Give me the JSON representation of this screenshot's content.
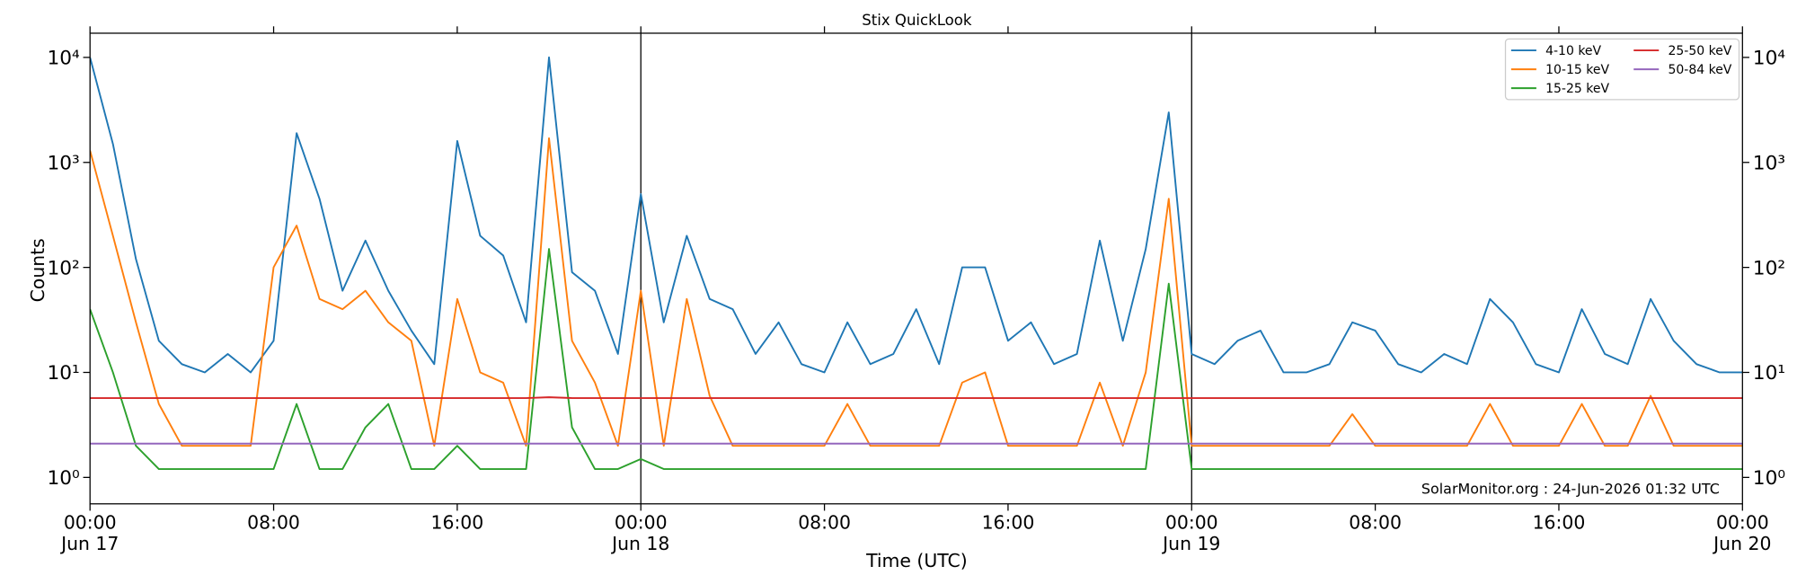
{
  "chart_data": {
    "type": "line",
    "title": "Stix QuickLook",
    "xlabel": "Time (UTC)",
    "ylabel": "Counts",
    "annotation": "SolarMonitor.org : 24-Jun-2026 01:32 UTC",
    "yscale": "log",
    "legend": "upper right",
    "x": [
      "Jun 17 00:00",
      "Jun 17 01:00",
      "Jun 17 02:00",
      "Jun 17 03:00",
      "Jun 17 04:00",
      "Jun 17 05:00",
      "Jun 17 06:00",
      "Jun 17 07:00",
      "Jun 17 08:00",
      "Jun 17 09:00",
      "Jun 17 10:00",
      "Jun 17 11:00",
      "Jun 17 12:00",
      "Jun 17 13:00",
      "Jun 17 14:00",
      "Jun 17 15:00",
      "Jun 17 16:00",
      "Jun 17 17:00",
      "Jun 17 18:00",
      "Jun 17 19:00",
      "Jun 17 20:00",
      "Jun 17 21:00",
      "Jun 17 22:00",
      "Jun 17 23:00",
      "Jun 18 00:00",
      "Jun 18 01:00",
      "Jun 18 02:00",
      "Jun 18 03:00",
      "Jun 18 04:00",
      "Jun 18 05:00",
      "Jun 18 06:00",
      "Jun 18 07:00",
      "Jun 18 08:00",
      "Jun 18 09:00",
      "Jun 18 10:00",
      "Jun 18 11:00",
      "Jun 18 12:00",
      "Jun 18 13:00",
      "Jun 18 14:00",
      "Jun 18 15:00",
      "Jun 18 16:00",
      "Jun 18 17:00",
      "Jun 18 18:00",
      "Jun 18 19:00",
      "Jun 18 20:00",
      "Jun 18 21:00",
      "Jun 18 22:00",
      "Jun 18 23:00",
      "Jun 19 00:00",
      "Jun 19 01:00",
      "Jun 19 02:00",
      "Jun 19 03:00",
      "Jun 19 04:00",
      "Jun 19 05:00",
      "Jun 19 06:00",
      "Jun 19 07:00",
      "Jun 19 08:00",
      "Jun 19 09:00",
      "Jun 19 10:00",
      "Jun 19 11:00",
      "Jun 19 12:00",
      "Jun 19 13:00",
      "Jun 19 14:00",
      "Jun 19 15:00",
      "Jun 19 16:00",
      "Jun 19 17:00",
      "Jun 19 18:00",
      "Jun 19 19:00",
      "Jun 19 20:00",
      "Jun 19 21:00",
      "Jun 19 22:00",
      "Jun 19 23:00",
      "Jun 20 00:00"
    ],
    "series": [
      {
        "name": "4-10 keV",
        "color": "#1f77b4",
        "values": [
          10000,
          1500,
          120,
          20,
          12,
          10,
          15,
          10,
          20,
          1900,
          450,
          60,
          180,
          60,
          25,
          12,
          1600,
          200,
          130,
          30,
          10000,
          90,
          60,
          15,
          500,
          30,
          200,
          50,
          40,
          15,
          30,
          12,
          10,
          30,
          12,
          15,
          40,
          12,
          100,
          100,
          20,
          30,
          12,
          15,
          180,
          20,
          150,
          3000,
          15,
          12,
          20,
          25,
          10,
          10,
          12,
          30,
          25,
          12,
          10,
          15,
          12,
          50,
          30,
          12,
          10,
          40,
          15,
          12,
          50,
          20,
          12,
          10,
          10
        ]
      },
      {
        "name": "10-15 keV",
        "color": "#ff7f0e",
        "values": [
          1300,
          200,
          30,
          5,
          2,
          2,
          2,
          2,
          100,
          250,
          50,
          40,
          60,
          30,
          20,
          2,
          50,
          10,
          8,
          2,
          1700,
          20,
          8,
          2,
          60,
          2,
          50,
          6,
          2,
          2,
          2,
          2,
          2,
          5,
          2,
          2,
          2,
          2,
          8,
          10,
          2,
          2,
          2,
          2,
          8,
          2,
          10,
          450,
          2,
          2,
          2,
          2,
          2,
          2,
          2,
          4,
          2,
          2,
          2,
          2,
          2,
          5,
          2,
          2,
          2,
          5,
          2,
          2,
          6,
          2,
          2,
          2,
          2
        ]
      },
      {
        "name": "15-25 keV",
        "color": "#2ca02c",
        "values": [
          40,
          10,
          2,
          1.2,
          1.2,
          1.2,
          1.2,
          1.2,
          1.2,
          5,
          1.2,
          1.2,
          3,
          5,
          1.2,
          1.2,
          2,
          1.2,
          1.2,
          1.2,
          150,
          3,
          1.2,
          1.2,
          1.5,
          1.2,
          1.2,
          1.2,
          1.2,
          1.2,
          1.2,
          1.2,
          1.2,
          1.2,
          1.2,
          1.2,
          1.2,
          1.2,
          1.2,
          1.2,
          1.2,
          1.2,
          1.2,
          1.2,
          1.2,
          1.2,
          1.2,
          70,
          1.2,
          1.2,
          1.2,
          1.2,
          1.2,
          1.2,
          1.2,
          1.2,
          1.2,
          1.2,
          1.2,
          1.2,
          1.2,
          1.2,
          1.2,
          1.2,
          1.2,
          1.2,
          1.2,
          1.2,
          1.2,
          1.2,
          1.2,
          1.2,
          1.2
        ]
      },
      {
        "name": "25-50 keV",
        "color": "#d62728",
        "values": [
          5.7,
          5.7,
          5.7,
          5.7,
          5.7,
          5.7,
          5.7,
          5.7,
          5.7,
          5.7,
          5.7,
          5.7,
          5.7,
          5.7,
          5.7,
          5.7,
          5.7,
          5.7,
          5.7,
          5.7,
          5.8,
          5.7,
          5.7,
          5.7,
          5.7,
          5.7,
          5.7,
          5.7,
          5.7,
          5.7,
          5.7,
          5.7,
          5.7,
          5.7,
          5.7,
          5.7,
          5.7,
          5.7,
          5.7,
          5.7,
          5.7,
          5.7,
          5.7,
          5.7,
          5.7,
          5.7,
          5.7,
          5.7,
          5.7,
          5.7,
          5.7,
          5.7,
          5.7,
          5.7,
          5.7,
          5.7,
          5.7,
          5.7,
          5.7,
          5.7,
          5.7,
          5.7,
          5.7,
          5.7,
          5.7,
          5.7,
          5.7,
          5.7,
          5.7,
          5.7,
          5.7,
          5.7,
          5.7
        ]
      },
      {
        "name": "50-84 keV",
        "color": "#9467bd",
        "values": [
          2.1,
          2.1,
          2.1,
          2.1,
          2.1,
          2.1,
          2.1,
          2.1,
          2.1,
          2.1,
          2.1,
          2.1,
          2.1,
          2.1,
          2.1,
          2.1,
          2.1,
          2.1,
          2.1,
          2.1,
          2.1,
          2.1,
          2.1,
          2.1,
          2.1,
          2.1,
          2.1,
          2.1,
          2.1,
          2.1,
          2.1,
          2.1,
          2.1,
          2.1,
          2.1,
          2.1,
          2.1,
          2.1,
          2.1,
          2.1,
          2.1,
          2.1,
          2.1,
          2.1,
          2.1,
          2.1,
          2.1,
          2.1,
          2.1,
          2.1,
          2.1,
          2.1,
          2.1,
          2.1,
          2.1,
          2.1,
          2.1,
          2.1,
          2.1,
          2.1,
          2.1,
          2.1,
          2.1,
          2.1,
          2.1,
          2.1,
          2.1,
          2.1,
          2.1,
          2.1,
          2.1,
          2.1,
          2.1
        ]
      }
    ],
    "xlim": [
      "Jun 17 00:00",
      "Jun 20 00:00"
    ],
    "xticks": [
      {
        "value": "Jun 17 00:00",
        "label": "00:00\nJun 17"
      },
      {
        "value": "Jun 17 08:00",
        "label": "08:00"
      },
      {
        "value": "Jun 17 16:00",
        "label": "16:00"
      },
      {
        "value": "Jun 18 00:00",
        "label": "00:00\nJun 18"
      },
      {
        "value": "Jun 18 08:00",
        "label": "08:00"
      },
      {
        "value": "Jun 18 16:00",
        "label": "16:00"
      },
      {
        "value": "Jun 19 00:00",
        "label": "00:00\nJun 19"
      },
      {
        "value": "Jun 19 08:00",
        "label": "08:00"
      },
      {
        "value": "Jun 19 16:00",
        "label": "16:00"
      },
      {
        "value": "Jun 20 00:00",
        "label": "00:00\nJun 20"
      }
    ],
    "ylim": [
      0.56,
      17000
    ],
    "yticks": [
      {
        "value": 1,
        "label": "10⁰"
      },
      {
        "value": 10,
        "label": "10¹"
      },
      {
        "value": 100,
        "label": "10²"
      },
      {
        "value": 1000,
        "label": "10³"
      },
      {
        "value": 10000,
        "label": "10⁴"
      }
    ]
  }
}
